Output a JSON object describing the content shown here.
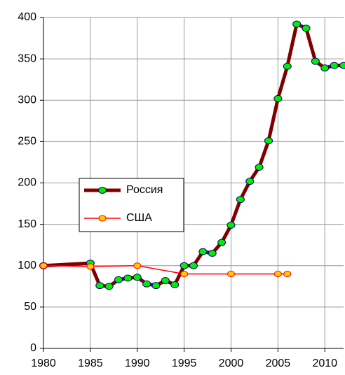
{
  "chart_data": {
    "type": "line",
    "xlim": [
      1980,
      2012
    ],
    "ylim": [
      0,
      400
    ],
    "xticks": [
      1980,
      1985,
      1990,
      1995,
      2000,
      2005,
      2010
    ],
    "yticks": [
      0,
      50,
      100,
      150,
      200,
      250,
      300,
      350,
      400
    ],
    "grid": true,
    "legend": "left",
    "series": [
      {
        "name": "Россия",
        "color": "#800000",
        "marker_color": "#00ee00",
        "x": [
          1980,
          1985,
          1986,
          1987,
          1988,
          1989,
          1990,
          1991,
          1992,
          1993,
          1994,
          1995,
          1996,
          1997,
          1998,
          1999,
          2000,
          2001,
          2002,
          2003,
          2004,
          2005,
          2006,
          2007,
          2008,
          2009,
          2010,
          2011,
          2012
        ],
        "values": [
          100,
          103,
          76,
          75,
          83,
          85,
          86,
          78,
          76,
          82,
          77,
          100,
          100,
          117,
          115,
          128,
          149,
          180,
          202,
          219,
          251,
          302,
          341,
          392,
          387,
          347,
          339,
          342,
          342
        ]
      },
      {
        "name": "США",
        "color": "#ff0000",
        "marker_color": "#ffcc00",
        "x": [
          1980,
          1985,
          1990,
          1995,
          2000,
          2005,
          2006
        ],
        "values": [
          100,
          99,
          100,
          90,
          90,
          90,
          90
        ]
      }
    ]
  }
}
